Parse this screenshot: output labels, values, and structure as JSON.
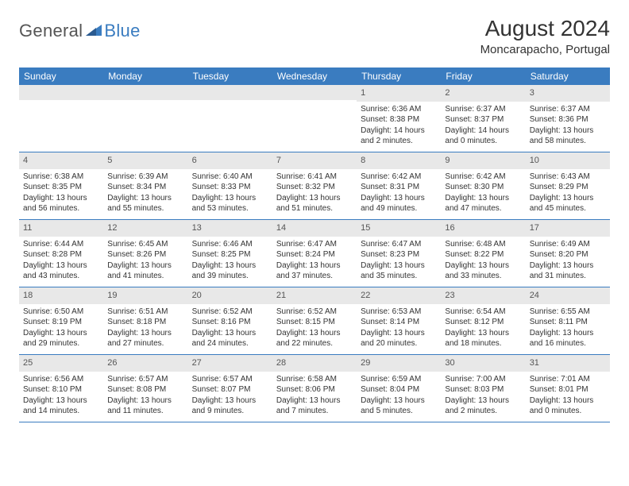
{
  "logo": {
    "text1": "General",
    "text2": "Blue"
  },
  "title": "August 2024",
  "location": "Moncarapacho, Portugal",
  "weekdays": [
    "Sunday",
    "Monday",
    "Tuesday",
    "Wednesday",
    "Thursday",
    "Friday",
    "Saturday"
  ],
  "colors": {
    "header_bg": "#3a7cc0",
    "daynum_bg": "#e8e8e8",
    "text": "#333333",
    "logo_blue": "#3a7cc0"
  },
  "weeks": [
    [
      {
        "n": "",
        "sr": "",
        "ss": "",
        "dl": ""
      },
      {
        "n": "",
        "sr": "",
        "ss": "",
        "dl": ""
      },
      {
        "n": "",
        "sr": "",
        "ss": "",
        "dl": ""
      },
      {
        "n": "",
        "sr": "",
        "ss": "",
        "dl": ""
      },
      {
        "n": "1",
        "sr": "Sunrise: 6:36 AM",
        "ss": "Sunset: 8:38 PM",
        "dl": "Daylight: 14 hours and 2 minutes."
      },
      {
        "n": "2",
        "sr": "Sunrise: 6:37 AM",
        "ss": "Sunset: 8:37 PM",
        "dl": "Daylight: 14 hours and 0 minutes."
      },
      {
        "n": "3",
        "sr": "Sunrise: 6:37 AM",
        "ss": "Sunset: 8:36 PM",
        "dl": "Daylight: 13 hours and 58 minutes."
      }
    ],
    [
      {
        "n": "4",
        "sr": "Sunrise: 6:38 AM",
        "ss": "Sunset: 8:35 PM",
        "dl": "Daylight: 13 hours and 56 minutes."
      },
      {
        "n": "5",
        "sr": "Sunrise: 6:39 AM",
        "ss": "Sunset: 8:34 PM",
        "dl": "Daylight: 13 hours and 55 minutes."
      },
      {
        "n": "6",
        "sr": "Sunrise: 6:40 AM",
        "ss": "Sunset: 8:33 PM",
        "dl": "Daylight: 13 hours and 53 minutes."
      },
      {
        "n": "7",
        "sr": "Sunrise: 6:41 AM",
        "ss": "Sunset: 8:32 PM",
        "dl": "Daylight: 13 hours and 51 minutes."
      },
      {
        "n": "8",
        "sr": "Sunrise: 6:42 AM",
        "ss": "Sunset: 8:31 PM",
        "dl": "Daylight: 13 hours and 49 minutes."
      },
      {
        "n": "9",
        "sr": "Sunrise: 6:42 AM",
        "ss": "Sunset: 8:30 PM",
        "dl": "Daylight: 13 hours and 47 minutes."
      },
      {
        "n": "10",
        "sr": "Sunrise: 6:43 AM",
        "ss": "Sunset: 8:29 PM",
        "dl": "Daylight: 13 hours and 45 minutes."
      }
    ],
    [
      {
        "n": "11",
        "sr": "Sunrise: 6:44 AM",
        "ss": "Sunset: 8:28 PM",
        "dl": "Daylight: 13 hours and 43 minutes."
      },
      {
        "n": "12",
        "sr": "Sunrise: 6:45 AM",
        "ss": "Sunset: 8:26 PM",
        "dl": "Daylight: 13 hours and 41 minutes."
      },
      {
        "n": "13",
        "sr": "Sunrise: 6:46 AM",
        "ss": "Sunset: 8:25 PM",
        "dl": "Daylight: 13 hours and 39 minutes."
      },
      {
        "n": "14",
        "sr": "Sunrise: 6:47 AM",
        "ss": "Sunset: 8:24 PM",
        "dl": "Daylight: 13 hours and 37 minutes."
      },
      {
        "n": "15",
        "sr": "Sunrise: 6:47 AM",
        "ss": "Sunset: 8:23 PM",
        "dl": "Daylight: 13 hours and 35 minutes."
      },
      {
        "n": "16",
        "sr": "Sunrise: 6:48 AM",
        "ss": "Sunset: 8:22 PM",
        "dl": "Daylight: 13 hours and 33 minutes."
      },
      {
        "n": "17",
        "sr": "Sunrise: 6:49 AM",
        "ss": "Sunset: 8:20 PM",
        "dl": "Daylight: 13 hours and 31 minutes."
      }
    ],
    [
      {
        "n": "18",
        "sr": "Sunrise: 6:50 AM",
        "ss": "Sunset: 8:19 PM",
        "dl": "Daylight: 13 hours and 29 minutes."
      },
      {
        "n": "19",
        "sr": "Sunrise: 6:51 AM",
        "ss": "Sunset: 8:18 PM",
        "dl": "Daylight: 13 hours and 27 minutes."
      },
      {
        "n": "20",
        "sr": "Sunrise: 6:52 AM",
        "ss": "Sunset: 8:16 PM",
        "dl": "Daylight: 13 hours and 24 minutes."
      },
      {
        "n": "21",
        "sr": "Sunrise: 6:52 AM",
        "ss": "Sunset: 8:15 PM",
        "dl": "Daylight: 13 hours and 22 minutes."
      },
      {
        "n": "22",
        "sr": "Sunrise: 6:53 AM",
        "ss": "Sunset: 8:14 PM",
        "dl": "Daylight: 13 hours and 20 minutes."
      },
      {
        "n": "23",
        "sr": "Sunrise: 6:54 AM",
        "ss": "Sunset: 8:12 PM",
        "dl": "Daylight: 13 hours and 18 minutes."
      },
      {
        "n": "24",
        "sr": "Sunrise: 6:55 AM",
        "ss": "Sunset: 8:11 PM",
        "dl": "Daylight: 13 hours and 16 minutes."
      }
    ],
    [
      {
        "n": "25",
        "sr": "Sunrise: 6:56 AM",
        "ss": "Sunset: 8:10 PM",
        "dl": "Daylight: 13 hours and 14 minutes."
      },
      {
        "n": "26",
        "sr": "Sunrise: 6:57 AM",
        "ss": "Sunset: 8:08 PM",
        "dl": "Daylight: 13 hours and 11 minutes."
      },
      {
        "n": "27",
        "sr": "Sunrise: 6:57 AM",
        "ss": "Sunset: 8:07 PM",
        "dl": "Daylight: 13 hours and 9 minutes."
      },
      {
        "n": "28",
        "sr": "Sunrise: 6:58 AM",
        "ss": "Sunset: 8:06 PM",
        "dl": "Daylight: 13 hours and 7 minutes."
      },
      {
        "n": "29",
        "sr": "Sunrise: 6:59 AM",
        "ss": "Sunset: 8:04 PM",
        "dl": "Daylight: 13 hours and 5 minutes."
      },
      {
        "n": "30",
        "sr": "Sunrise: 7:00 AM",
        "ss": "Sunset: 8:03 PM",
        "dl": "Daylight: 13 hours and 2 minutes."
      },
      {
        "n": "31",
        "sr": "Sunrise: 7:01 AM",
        "ss": "Sunset: 8:01 PM",
        "dl": "Daylight: 13 hours and 0 minutes."
      }
    ]
  ]
}
